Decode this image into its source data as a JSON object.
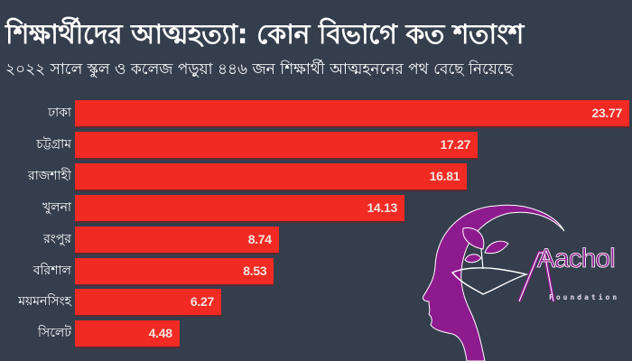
{
  "header": {
    "title": "শিক্ষার্থীদের আত্মহত্যা: কোন বিভাগে কত শতাংশ",
    "subtitle": "২০২২ সালে স্কুল ও কলেজ পড়ুয়া ৪৪৬ জন শিক্ষার্থী আত্মহননের পথ বেছে নিয়েছে"
  },
  "colors": {
    "background": "#353e4d",
    "bar": "#f22a24",
    "logo_purple": "#8e1b8e"
  },
  "logo": {
    "name": "Aachol",
    "subtitle": "Foundation"
  },
  "chart_data": {
    "type": "bar",
    "orientation": "horizontal",
    "title": "শিক্ষার্থীদের আত্মহত্যা: কোন বিভাগে কত শতাংশ",
    "subtitle": "২০২২ সালে স্কুল ও কলেজ পড়ুয়া ৪৪৬ জন শিক্ষার্থী আত্মহননের পথ বেছে নিয়েছে",
    "categories": [
      "ঢাকা",
      "চট্টগ্রাম",
      "রাজশাহী",
      "খুলনা",
      "রংপুর",
      "বরিশাল",
      "ময়মনসিংহ",
      "সিলেট"
    ],
    "values": [
      23.77,
      17.27,
      16.81,
      14.13,
      8.74,
      8.53,
      6.27,
      4.48
    ],
    "labels": [
      "23.77",
      "17.27",
      "16.81",
      "14.13",
      "8.74",
      "8.53",
      "6.27",
      "4.48"
    ],
    "xlabel": "",
    "ylabel": "",
    "grid": false,
    "legend": null,
    "data_labels": "inside-end"
  }
}
